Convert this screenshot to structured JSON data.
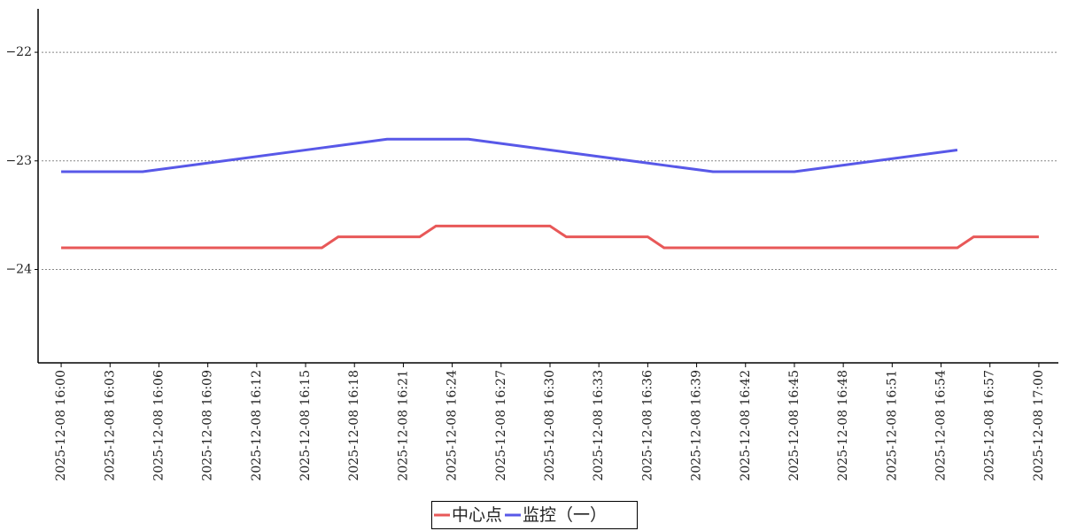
{
  "chart_data": {
    "type": "line",
    "x": [
      "2025-12-08 16:00",
      "2025-12-08 16:05",
      "2025-12-08 16:16",
      "2025-12-08 16:17",
      "2025-12-08 16:20",
      "2025-12-08 16:22",
      "2025-12-08 16:23",
      "2025-12-08 16:25",
      "2025-12-08 16:30",
      "2025-12-08 16:31",
      "2025-12-08 16:36",
      "2025-12-08 16:37",
      "2025-12-08 16:40",
      "2025-12-08 16:45",
      "2025-12-08 16:55",
      "2025-12-08 16:56",
      "2025-12-08 17:00"
    ],
    "series": [
      {
        "name": "中心点",
        "color": "#e85858",
        "values": [
          -23.8,
          -23.8,
          -23.8,
          -23.7,
          -23.7,
          -23.7,
          -23.6,
          -23.6,
          -23.6,
          -23.7,
          -23.7,
          -23.8,
          -23.8,
          -23.8,
          -23.8,
          -23.7,
          -23.7
        ]
      },
      {
        "name": "监控（一）",
        "color": "#5858e8",
        "values": [
          -23.1,
          -23.1,
          -22.88,
          -22.86,
          -22.8,
          -22.8,
          -22.8,
          -22.8,
          -22.9,
          -22.92,
          -23.02,
          -23.04,
          -23.1,
          -23.1,
          -22.9,
          null,
          null
        ]
      }
    ],
    "xlim": [
      "2025-12-08 15:58:35",
      "2025-12-08 17:01:12"
    ],
    "xticks": [
      "2025-12-08 16:00",
      "2025-12-08 16:03",
      "2025-12-08 16:06",
      "2025-12-08 16:09",
      "2025-12-08 16:12",
      "2025-12-08 16:15",
      "2025-12-08 16:18",
      "2025-12-08 16:21",
      "2025-12-08 16:24",
      "2025-12-08 16:27",
      "2025-12-08 16:30",
      "2025-12-08 16:33",
      "2025-12-08 16:36",
      "2025-12-08 16:39",
      "2025-12-08 16:42",
      "2025-12-08 16:45",
      "2025-12-08 16:48",
      "2025-12-08 16:51",
      "2025-12-08 16:54",
      "2025-12-08 16:57",
      "2025-12-08 17:00"
    ],
    "ylim": [
      -24.86,
      -21.6
    ],
    "yticks": [
      {
        "value": -22,
        "label": "−22"
      },
      {
        "value": -23,
        "label": "−23"
      },
      {
        "value": -24,
        "label": "−24"
      }
    ],
    "grid": true,
    "legend": "bottom"
  }
}
